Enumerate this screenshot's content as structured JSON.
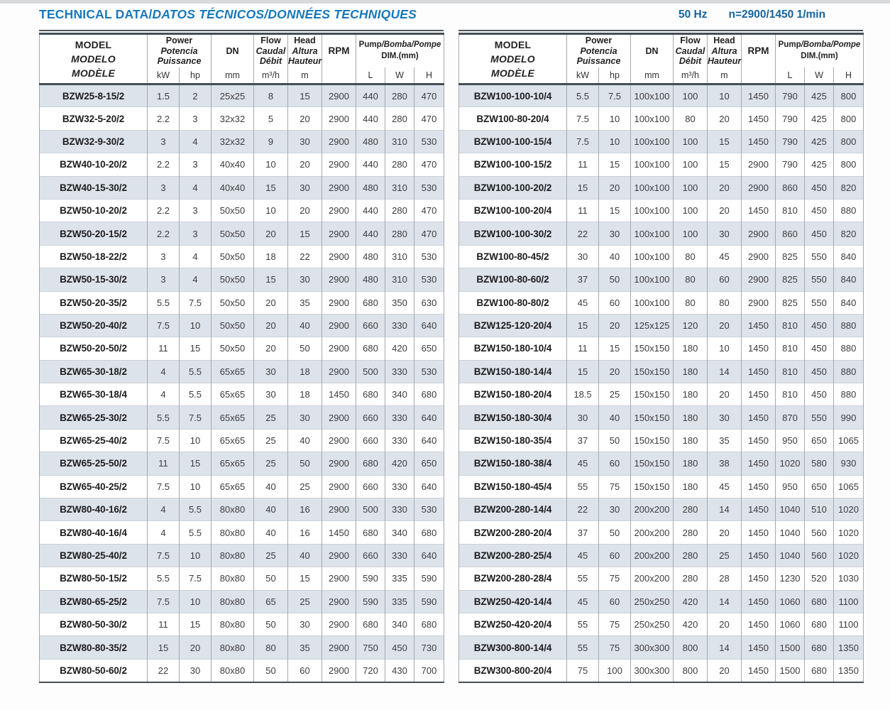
{
  "page": {
    "title_main": "TECHNICAL DATA/",
    "title_italic": "DATOS TÉCNICOS/DONNÉES TECHNIQUES",
    "frequency": "50 Hz",
    "speed": "n=2900/1450 1/min",
    "accent_blue": "#1878bc",
    "meta_blue": "#15639c",
    "stripe_color": "#dde3eb"
  },
  "columns": [
    "model",
    "kw",
    "hp",
    "dn",
    "flow",
    "head",
    "rpm",
    "L",
    "W",
    "H"
  ],
  "header": {
    "model": [
      "MODEL",
      "MODELO",
      "MODÈLE"
    ],
    "power": [
      "Power",
      "Potencia",
      "Puissance"
    ],
    "dn": "DN",
    "flow": [
      "Flow",
      "Caudal",
      "Débit"
    ],
    "head": [
      "Head",
      "Altura",
      "Hauteur"
    ],
    "rpm": "RPM",
    "dim_pump": "Pump",
    "dim_rest": "/Bomba/Pompe",
    "dim_mm": "DIM.(mm)",
    "unit_kw": "kW",
    "unit_hp": "hp",
    "unit_mm": "mm",
    "unit_flow": "m³/h",
    "unit_m": "m",
    "unit_L": "L",
    "unit_W": "W",
    "unit_H": "H"
  },
  "tables": {
    "left": {
      "rows": [
        [
          "BZW25-8-15/2",
          "1.5",
          "2",
          "25x25",
          "8",
          "15",
          "2900",
          "440",
          "280",
          "470"
        ],
        [
          "BZW32-5-20/2",
          "2.2",
          "3",
          "32x32",
          "5",
          "20",
          "2900",
          "440",
          "280",
          "470"
        ],
        [
          "BZW32-9-30/2",
          "3",
          "4",
          "32x32",
          "9",
          "30",
          "2900",
          "480",
          "310",
          "530"
        ],
        [
          "BZW40-10-20/2",
          "2.2",
          "3",
          "40x40",
          "10",
          "20",
          "2900",
          "440",
          "280",
          "470"
        ],
        [
          "BZW40-15-30/2",
          "3",
          "4",
          "40x40",
          "15",
          "30",
          "2900",
          "480",
          "310",
          "530"
        ],
        [
          "BZW50-10-20/2",
          "2.2",
          "3",
          "50x50",
          "10",
          "20",
          "2900",
          "440",
          "280",
          "470"
        ],
        [
          "BZW50-20-15/2",
          "2.2",
          "3",
          "50x50",
          "20",
          "15",
          "2900",
          "440",
          "280",
          "470"
        ],
        [
          "BZW50-18-22/2",
          "3",
          "4",
          "50x50",
          "18",
          "22",
          "2900",
          "480",
          "310",
          "530"
        ],
        [
          "BZW50-15-30/2",
          "3",
          "4",
          "50x50",
          "15",
          "30",
          "2900",
          "480",
          "310",
          "530"
        ],
        [
          "BZW50-20-35/2",
          "5.5",
          "7.5",
          "50x50",
          "20",
          "35",
          "2900",
          "680",
          "350",
          "630"
        ],
        [
          "BZW50-20-40/2",
          "7.5",
          "10",
          "50x50",
          "20",
          "40",
          "2900",
          "660",
          "330",
          "640"
        ],
        [
          "BZW50-20-50/2",
          "11",
          "15",
          "50x50",
          "20",
          "50",
          "2900",
          "680",
          "420",
          "650"
        ],
        [
          "BZW65-30-18/2",
          "4",
          "5.5",
          "65x65",
          "30",
          "18",
          "2900",
          "500",
          "330",
          "530"
        ],
        [
          "BZW65-30-18/4",
          "4",
          "5.5",
          "65x65",
          "30",
          "18",
          "1450",
          "680",
          "340",
          "680"
        ],
        [
          "BZW65-25-30/2",
          "5.5",
          "7.5",
          "65x65",
          "25",
          "30",
          "2900",
          "660",
          "330",
          "640"
        ],
        [
          "BZW65-25-40/2",
          "7.5",
          "10",
          "65x65",
          "25",
          "40",
          "2900",
          "660",
          "330",
          "640"
        ],
        [
          "BZW65-25-50/2",
          "11",
          "15",
          "65x65",
          "25",
          "50",
          "2900",
          "680",
          "420",
          "650"
        ],
        [
          "BZW65-40-25/2",
          "7.5",
          "10",
          "65x65",
          "40",
          "25",
          "2900",
          "660",
          "330",
          "640"
        ],
        [
          "BZW80-40-16/2",
          "4",
          "5.5",
          "80x80",
          "40",
          "16",
          "2900",
          "500",
          "330",
          "530"
        ],
        [
          "BZW80-40-16/4",
          "4",
          "5.5",
          "80x80",
          "40",
          "16",
          "1450",
          "680",
          "340",
          "680"
        ],
        [
          "BZW80-25-40/2",
          "7.5",
          "10",
          "80x80",
          "25",
          "40",
          "2900",
          "660",
          "330",
          "640"
        ],
        [
          "BZW80-50-15/2",
          "5.5",
          "7.5",
          "80x80",
          "50",
          "15",
          "2900",
          "590",
          "335",
          "590"
        ],
        [
          "BZW80-65-25/2",
          "7.5",
          "10",
          "80x80",
          "65",
          "25",
          "2900",
          "590",
          "335",
          "590"
        ],
        [
          "BZW80-50-30/2",
          "11",
          "15",
          "80x80",
          "50",
          "30",
          "2900",
          "680",
          "340",
          "680"
        ],
        [
          "BZW80-80-35/2",
          "15",
          "20",
          "80x80",
          "80",
          "35",
          "2900",
          "750",
          "450",
          "730"
        ],
        [
          "BZW80-50-60/2",
          "22",
          "30",
          "80x80",
          "50",
          "60",
          "2900",
          "720",
          "430",
          "700"
        ]
      ]
    },
    "right": {
      "rows": [
        [
          "BZW100-100-10/4",
          "5.5",
          "7.5",
          "100x100",
          "100",
          "10",
          "1450",
          "790",
          "425",
          "800"
        ],
        [
          "BZW100-80-20/4",
          "7.5",
          "10",
          "100x100",
          "80",
          "20",
          "1450",
          "790",
          "425",
          "800"
        ],
        [
          "BZW100-100-15/4",
          "7.5",
          "10",
          "100x100",
          "100",
          "15",
          "1450",
          "790",
          "425",
          "800"
        ],
        [
          "BZW100-100-15/2",
          "11",
          "15",
          "100x100",
          "100",
          "15",
          "2900",
          "790",
          "425",
          "800"
        ],
        [
          "BZW100-100-20/2",
          "15",
          "20",
          "100x100",
          "100",
          "20",
          "2900",
          "860",
          "450",
          "820"
        ],
        [
          "BZW100-100-20/4",
          "11",
          "15",
          "100x100",
          "100",
          "20",
          "1450",
          "810",
          "450",
          "880"
        ],
        [
          "BZW100-100-30/2",
          "22",
          "30",
          "100x100",
          "100",
          "30",
          "2900",
          "860",
          "450",
          "820"
        ],
        [
          "BZW100-80-45/2",
          "30",
          "40",
          "100x100",
          "80",
          "45",
          "2900",
          "825",
          "550",
          "840"
        ],
        [
          "BZW100-80-60/2",
          "37",
          "50",
          "100x100",
          "80",
          "60",
          "2900",
          "825",
          "550",
          "840"
        ],
        [
          "BZW100-80-80/2",
          "45",
          "60",
          "100x100",
          "80",
          "80",
          "2900",
          "825",
          "550",
          "840"
        ],
        [
          "BZW125-120-20/4",
          "15",
          "20",
          "125x125",
          "120",
          "20",
          "1450",
          "810",
          "450",
          "880"
        ],
        [
          "BZW150-180-10/4",
          "11",
          "15",
          "150x150",
          "180",
          "10",
          "1450",
          "810",
          "450",
          "880"
        ],
        [
          "BZW150-180-14/4",
          "15",
          "20",
          "150x150",
          "180",
          "14",
          "1450",
          "810",
          "450",
          "880"
        ],
        [
          "BZW150-180-20/4",
          "18.5",
          "25",
          "150x150",
          "180",
          "20",
          "1450",
          "810",
          "450",
          "880"
        ],
        [
          "BZW150-180-30/4",
          "30",
          "40",
          "150x150",
          "180",
          "30",
          "1450",
          "870",
          "550",
          "990"
        ],
        [
          "BZW150-180-35/4",
          "37",
          "50",
          "150x150",
          "180",
          "35",
          "1450",
          "950",
          "650",
          "1065"
        ],
        [
          "BZW150-180-38/4",
          "45",
          "60",
          "150x150",
          "180",
          "38",
          "1450",
          "1020",
          "580",
          "930"
        ],
        [
          "BZW150-180-45/4",
          "55",
          "75",
          "150x150",
          "180",
          "45",
          "1450",
          "950",
          "650",
          "1065"
        ],
        [
          "BZW200-280-14/4",
          "22",
          "30",
          "200x200",
          "280",
          "14",
          "1450",
          "1040",
          "510",
          "1020"
        ],
        [
          "BZW200-280-20/4",
          "37",
          "50",
          "200x200",
          "280",
          "20",
          "1450",
          "1040",
          "560",
          "1020"
        ],
        [
          "BZW200-280-25/4",
          "45",
          "60",
          "200x200",
          "280",
          "25",
          "1450",
          "1040",
          "560",
          "1020"
        ],
        [
          "BZW200-280-28/4",
          "55",
          "75",
          "200x200",
          "280",
          "28",
          "1450",
          "1230",
          "520",
          "1030"
        ],
        [
          "BZW250-420-14/4",
          "45",
          "60",
          "250x250",
          "420",
          "14",
          "1450",
          "1060",
          "680",
          "1100"
        ],
        [
          "BZW250-420-20/4",
          "55",
          "75",
          "250x250",
          "420",
          "20",
          "1450",
          "1060",
          "680",
          "1100"
        ],
        [
          "BZW300-800-14/4",
          "55",
          "75",
          "300x300",
          "800",
          "14",
          "1450",
          "1500",
          "680",
          "1350"
        ],
        [
          "BZW300-800-20/4",
          "75",
          "100",
          "300x300",
          "800",
          "20",
          "1450",
          "1500",
          "680",
          "1350"
        ]
      ]
    }
  }
}
